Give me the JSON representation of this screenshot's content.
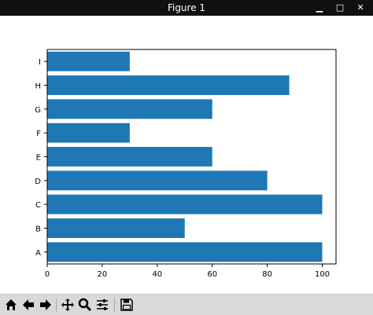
{
  "window": {
    "title": "Figure 1",
    "minimize_glyph": "▁",
    "maximize_glyph": "□",
    "close_glyph": "✕"
  },
  "toolbar": {
    "buttons": [
      {
        "name": "home-icon",
        "label": "Home"
      },
      {
        "name": "back-icon",
        "label": "Back"
      },
      {
        "name": "forward-icon",
        "label": "Forward"
      },
      {
        "name": "pan-icon",
        "label": "Pan"
      },
      {
        "name": "zoom-icon",
        "label": "Zoom"
      },
      {
        "name": "configure-subplots-icon",
        "label": "Subplots"
      },
      {
        "name": "save-icon",
        "label": "Save"
      }
    ]
  },
  "chart_data": {
    "type": "bar",
    "orientation": "horizontal",
    "categories": [
      "A",
      "B",
      "C",
      "D",
      "E",
      "F",
      "G",
      "H",
      "I"
    ],
    "values": [
      100,
      50,
      100,
      80,
      60,
      30,
      60,
      88,
      30
    ],
    "xticks": [
      "0",
      "20",
      "40",
      "60",
      "80",
      "100"
    ],
    "xlim": [
      0,
      105
    ],
    "bar_color": "#1f77b4",
    "title": "",
    "xlabel": "",
    "ylabel": "",
    "grid": false
  }
}
